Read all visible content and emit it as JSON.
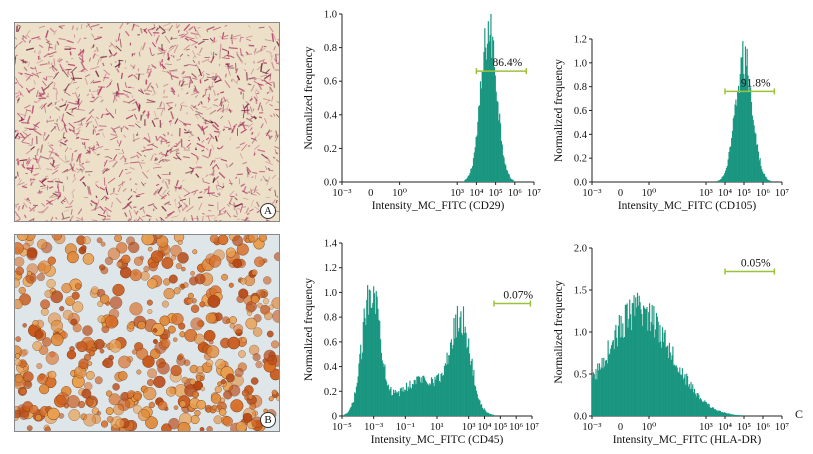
{
  "figure": {
    "panel_a_label": "A",
    "panel_b_label": "B",
    "panel_c_label": "C",
    "photo_a_stain_color": "#b03060",
    "photo_b_stain_color": "#d9702a",
    "histogram_color": "#1a9680",
    "gate_color": "#9cc23a"
  },
  "chart_data": [
    {
      "type": "histogram",
      "marker": "CD29",
      "xlabel": "Intensity_MC_FITC (CD29)",
      "ylabel": "Normalized frequency",
      "xlim_log10": [
        -3,
        7
      ],
      "xticks_log10": [
        -3,
        0,
        3,
        4,
        5,
        6,
        7
      ],
      "ylim": [
        0,
        1.0
      ],
      "yticks": [
        "0.0",
        "0.2",
        "0.4",
        "0.6",
        "0.8",
        "1.0"
      ],
      "yvalues": [
        0,
        0.2,
        0.4,
        0.6,
        0.8,
        1.0
      ],
      "components": [
        {
          "center": 4.65,
          "width": 0.42,
          "height": 0.9
        }
      ],
      "gate": {
        "from_log10": 4.0,
        "to_log10": 6.6,
        "y": 0.66,
        "label": "86.4%"
      }
    },
    {
      "type": "histogram",
      "marker": "CD105",
      "xlabel": "Intensity_MC_FITC (CD105)",
      "ylabel": "Normalized frequency",
      "xlim_log10": [
        -3,
        7
      ],
      "xticks_log10": [
        -3,
        0,
        3,
        4,
        5,
        6,
        7
      ],
      "ylim": [
        0,
        1.2
      ],
      "yticks": [
        "0.0",
        "0.2",
        "0.4",
        "0.6",
        "0.8",
        "1.0",
        "1.2"
      ],
      "yvalues": [
        0,
        0.2,
        0.4,
        0.6,
        0.8,
        1.0,
        1.2
      ],
      "components": [
        {
          "center": 5.0,
          "width": 0.45,
          "height": 1.02
        }
      ],
      "gate": {
        "from_log10": 4.0,
        "to_log10": 6.6,
        "y": 0.76,
        "label": "91.8%"
      }
    },
    {
      "type": "histogram",
      "marker": "CD45",
      "xlabel": "Intensity_MC_FITC (CD45)",
      "ylabel": "Normalized frequency",
      "xlim_log10": [
        -5,
        7
      ],
      "xticks_log10": [
        -5,
        -3,
        -1,
        1,
        3,
        4,
        5,
        6,
        7
      ],
      "ylim": [
        0,
        1.4
      ],
      "yticks": [
        "0",
        "0.2",
        "0.4",
        "0.6",
        "0.8",
        "1.0",
        "1.2",
        "1.4"
      ],
      "yvalues": [
        0,
        0.2,
        0.4,
        0.6,
        0.8,
        1.0,
        1.2,
        1.4
      ],
      "components": [
        {
          "center": -3.15,
          "width": 0.55,
          "height": 1.02
        },
        {
          "center": 2.5,
          "width": 0.6,
          "height": 0.7
        },
        {
          "center": 0.2,
          "width": 1.6,
          "height": 0.3
        }
      ],
      "gate": {
        "from_log10": 4.6,
        "to_log10": 6.9,
        "y": 0.91,
        "label": "0.07%"
      }
    },
    {
      "type": "histogram",
      "marker": "HLA-DR",
      "xlabel": "Intensity_MC_FITC (HLA-DR)",
      "ylabel": "Normalized frequency",
      "xlim_log10": [
        -3,
        7
      ],
      "xticks_log10": [
        -3,
        0,
        3,
        4,
        5,
        6,
        7
      ],
      "ylim": [
        0,
        2.0
      ],
      "yticks": [
        "0.0",
        "0.5",
        "1.0",
        "1.5",
        "2.0"
      ],
      "yvalues": [
        0,
        0.5,
        1.0,
        1.5,
        2.0
      ],
      "components": [
        {
          "center": -0.5,
          "width": 1.7,
          "height": 1.25
        }
      ],
      "gate": {
        "from_log10": 4.0,
        "to_log10": 6.6,
        "y": 1.72,
        "label": "0.05%"
      }
    }
  ]
}
